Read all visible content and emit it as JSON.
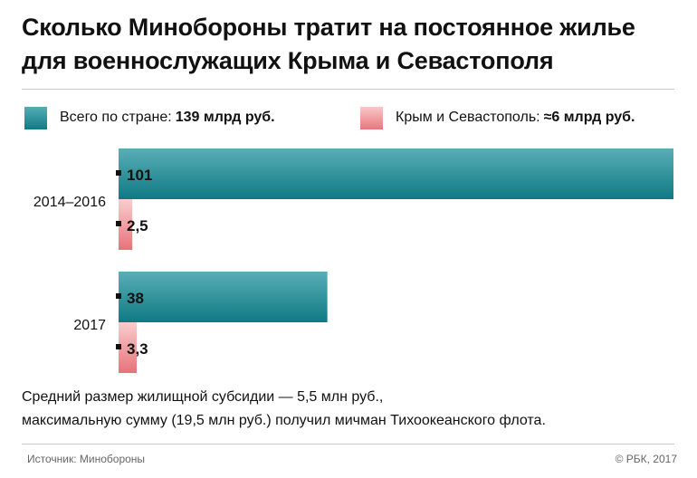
{
  "title_line1": "Сколько Минобороны тратит на постоянное жилье",
  "title_line2": "для военнослужащих Крыма и Севастополя",
  "legend": [
    {
      "label": "Всего по стране:",
      "value": "139 млрд руб.",
      "color": "#15858f"
    },
    {
      "label": "Крым и Севастополь:",
      "value": "≈6 млрд руб.",
      "color": "#ec8a8e"
    }
  ],
  "note_line1": "Средний размер жилищной субсидии — 5,5 млн руб.,",
  "note_line2": "максимальную сумму (19,5 млн руб.) получил мичман Тихоокеанского флота.",
  "source": "Источник: Минобороны",
  "copyright": "© РБК, 2017",
  "chart_data": {
    "type": "bar",
    "orientation": "horizontal",
    "categories": [
      "2014–2016",
      "2017"
    ],
    "series": [
      {
        "name": "Всего по стране",
        "values": [
          101,
          38
        ],
        "labels": [
          "101",
          "38"
        ],
        "color": "#15858f"
      },
      {
        "name": "Крым и Севастополь",
        "values": [
          2.5,
          3.3
        ],
        "labels": [
          "2,5",
          "3,3"
        ],
        "color": "#ec8a8e"
      }
    ],
    "xlim": [
      0,
      101
    ],
    "grid": false,
    "legend_position": "top"
  }
}
